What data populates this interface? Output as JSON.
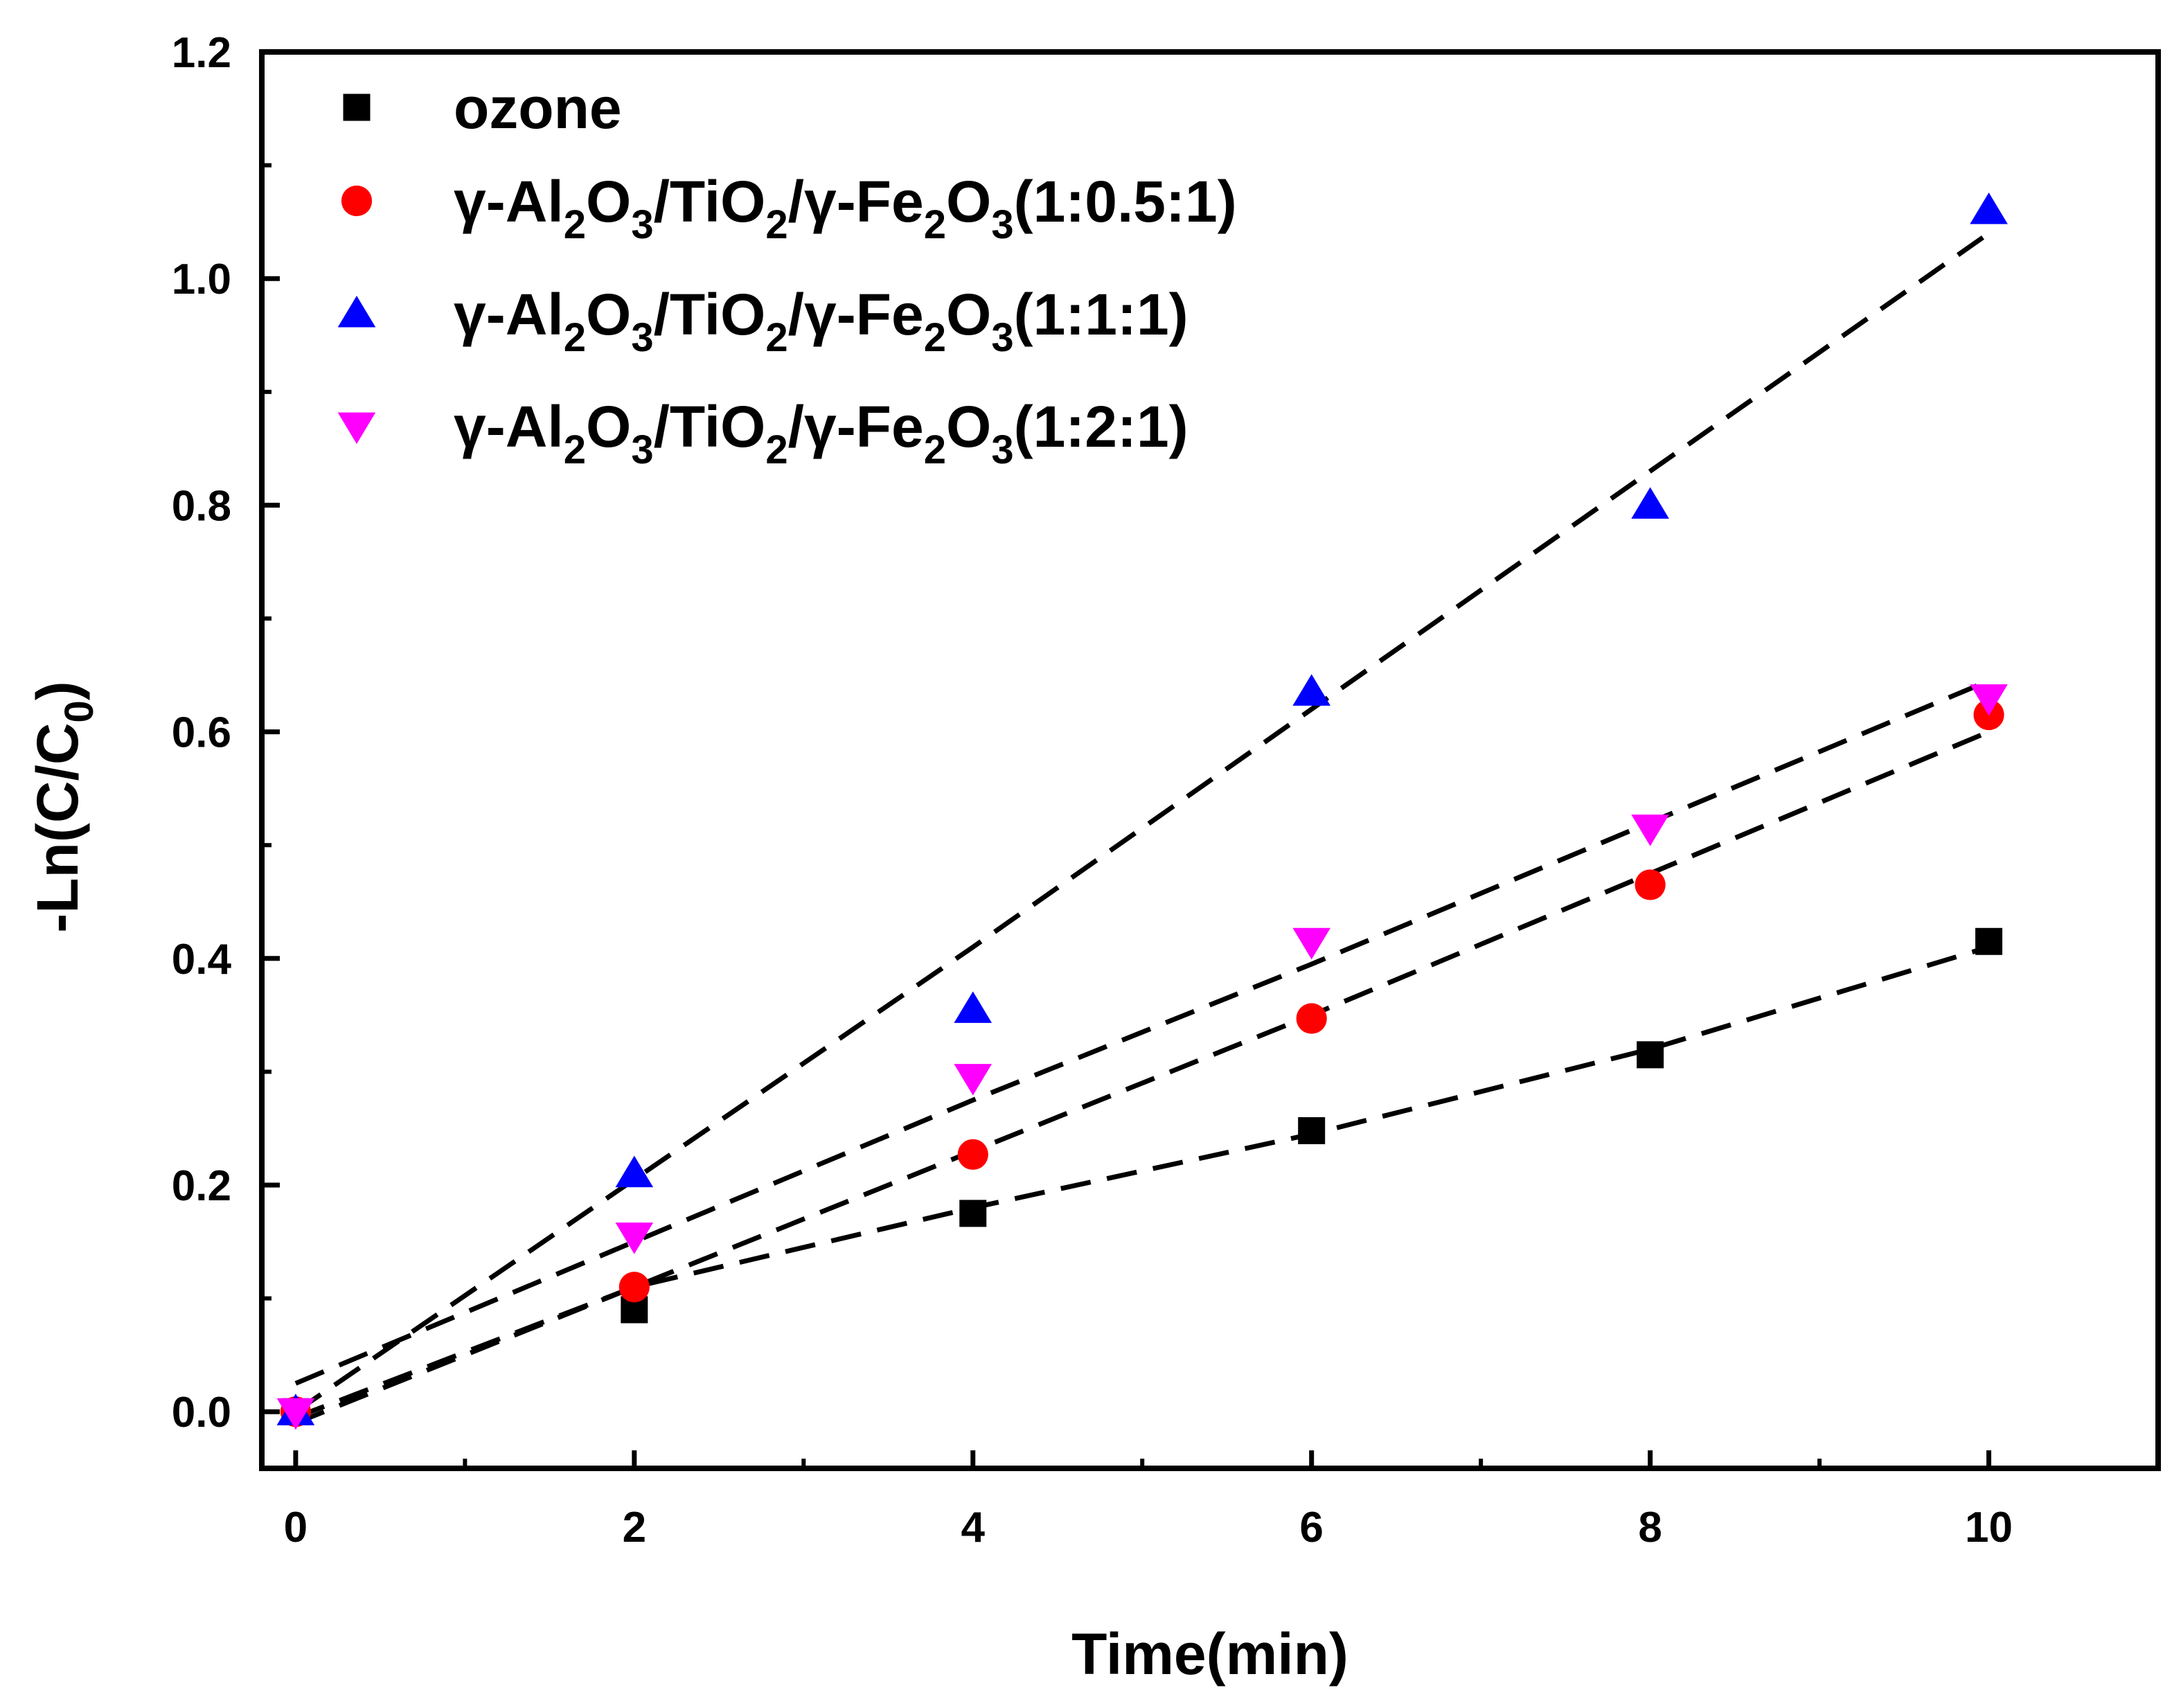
{
  "chart_data": {
    "type": "scatter",
    "xlabel": "Time(min)",
    "ylabel": {
      "main": "-Ln(C/C",
      "sub": "0",
      "close": ")"
    },
    "xlim": [
      -0.2,
      11
    ],
    "ylim": [
      -0.05,
      1.2
    ],
    "xticks": [
      0,
      2,
      4,
      6,
      8,
      10
    ],
    "xtick_labels": [
      "0",
      "2",
      "4",
      "6",
      "8",
      "10"
    ],
    "yticks": [
      0.0,
      0.2,
      0.4,
      0.6,
      0.8,
      1.0,
      1.2
    ],
    "ytick_labels": [
      "0.0",
      "0.2",
      "0.4",
      "0.6",
      "0.8",
      "1.0",
      "1.2"
    ],
    "x": [
      0,
      2,
      4,
      6,
      8,
      10
    ],
    "series": [
      {
        "name": "ozone",
        "marker": "square",
        "color": "#000000",
        "values": [
          0.0,
          0.09,
          0.175,
          0.248,
          0.315,
          0.415
        ],
        "fit": [
          -0.005,
          0.11,
          0.18,
          0.245,
          0.32,
          0.41
        ]
      },
      {
        "name": "γ-Al2O3/TiO2/γ-Fe2O3(1:0.5:1)",
        "marker": "circle",
        "color": "#ff0000",
        "values": [
          0.0,
          0.11,
          0.227,
          0.347,
          0.465,
          0.615
        ],
        "fit": [
          -0.01,
          0.11,
          0.23,
          0.35,
          0.475,
          0.6
        ]
      },
      {
        "name": "γ-Al2O3/TiO2/γ-Fe2O3(1:1:1)",
        "marker": "triangle-up",
        "color": "#0000ff",
        "values": [
          0.0,
          0.21,
          0.355,
          0.635,
          0.8,
          1.06
        ],
        "fit": [
          0.0,
          0.205,
          0.41,
          0.62,
          0.83,
          1.04
        ]
      },
      {
        "name": "γ-Al2O3/TiO2/γ-Fe2O3(1:2:1)",
        "marker": "triangle-down",
        "color": "#ff00ff",
        "values": [
          0.0,
          0.155,
          0.295,
          0.415,
          0.515,
          0.63
        ],
        "fit": [
          0.025,
          0.15,
          0.275,
          0.395,
          0.52,
          0.645
        ]
      }
    ],
    "legend": {
      "position": "top-left",
      "entries": [
        {
          "parts": [
            {
              "t": "ozone"
            }
          ]
        },
        {
          "parts": [
            {
              "t": "γ-Al"
            },
            {
              "t": "2",
              "sub": true
            },
            {
              "t": "O"
            },
            {
              "t": "3",
              "sub": true
            },
            {
              "t": "/TiO"
            },
            {
              "t": "2",
              "sub": true
            },
            {
              "t": "/γ-Fe"
            },
            {
              "t": "2",
              "sub": true
            },
            {
              "t": "O"
            },
            {
              "t": "3",
              "sub": true
            },
            {
              "t": "(1:0.5:1)"
            }
          ]
        },
        {
          "parts": [
            {
              "t": "γ-Al"
            },
            {
              "t": "2",
              "sub": true
            },
            {
              "t": "O"
            },
            {
              "t": "3",
              "sub": true
            },
            {
              "t": "/TiO"
            },
            {
              "t": "2",
              "sub": true
            },
            {
              "t": "/γ-Fe"
            },
            {
              "t": "2",
              "sub": true
            },
            {
              "t": "O"
            },
            {
              "t": "3",
              "sub": true
            },
            {
              "t": "(1:1:1)"
            }
          ]
        },
        {
          "parts": [
            {
              "t": "γ-Al"
            },
            {
              "t": "2",
              "sub": true
            },
            {
              "t": "O"
            },
            {
              "t": "3",
              "sub": true
            },
            {
              "t": "/TiO"
            },
            {
              "t": "2",
              "sub": true
            },
            {
              "t": "/γ-Fe"
            },
            {
              "t": "2",
              "sub": true
            },
            {
              "t": "O"
            },
            {
              "t": "3",
              "sub": true
            },
            {
              "t": "(1:2:1)"
            }
          ]
        }
      ]
    }
  }
}
